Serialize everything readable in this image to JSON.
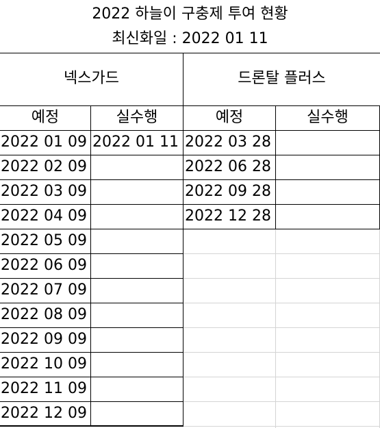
{
  "title_line1": "2022 하늘이 구충제 투여 현황",
  "title_line2": "최신화일 : 2022 01 11",
  "groups": [
    {
      "name": "넥스가드",
      "col_planned": "예정",
      "col_done": "실수행"
    },
    {
      "name": "드론탈 플러스",
      "col_planned": "예정",
      "col_done": "실수행"
    }
  ],
  "nexgard_rows": [
    {
      "planned": "2022 01 09",
      "done": "2022 01 11"
    },
    {
      "planned": "2022 02 09",
      "done": ""
    },
    {
      "planned": "2022 03 09",
      "done": ""
    },
    {
      "planned": "2022 04 09",
      "done": ""
    },
    {
      "planned": "2022 05 09",
      "done": ""
    },
    {
      "planned": "2022 06 09",
      "done": ""
    },
    {
      "planned": "2022 07 09",
      "done": ""
    },
    {
      "planned": "2022 08 09",
      "done": ""
    },
    {
      "planned": "2022 09 09",
      "done": ""
    },
    {
      "planned": "2022 10 09",
      "done": ""
    },
    {
      "planned": "2022 11 09",
      "done": ""
    },
    {
      "planned": "2022 12 09",
      "done": ""
    }
  ],
  "drontal_rows": [
    {
      "planned": "2022 03 28",
      "done": ""
    },
    {
      "planned": "2022 06 28",
      "done": ""
    },
    {
      "planned": "2022 09 28",
      "done": ""
    },
    {
      "planned": "2022 12 28",
      "done": ""
    }
  ]
}
